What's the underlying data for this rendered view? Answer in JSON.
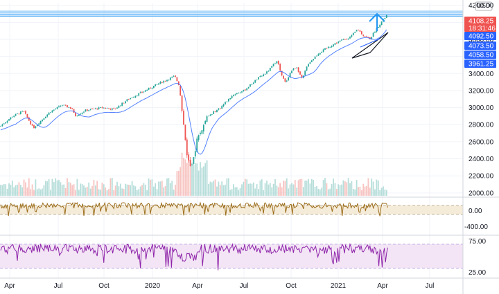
{
  "chart_data": [
    {
      "type": "candlestick",
      "currency": "USD",
      "ylim": [
        1950,
        4230
      ],
      "y_ticks": [
        2000,
        2200,
        2400,
        2600,
        2800,
        3000,
        3200,
        3400,
        3600,
        3800,
        4000,
        4200
      ],
      "y_tick_labels": [
        "2000.00",
        "2200.00",
        "2400.00",
        "2600.00",
        "2800.00",
        "3000.00",
        "3200.00",
        "3400.00",
        "3600.00",
        "3800.00",
        "4000.00",
        "4200.00"
      ],
      "x_ticks": [
        "Apr",
        "Jul",
        "Oct",
        "2020",
        "Apr",
        "Jul",
        "Oct",
        "2021",
        "Apr",
        "Jul"
      ],
      "price_tags": [
        {
          "label": "4108.25",
          "sub": "18:31:46",
          "color": "#ef5350"
        },
        {
          "label": "4092.50",
          "color": "#2962ff"
        },
        {
          "label": "4073.50",
          "color": "#2962ff"
        },
        {
          "label": "4058.50",
          "color": "#2962ff"
        },
        {
          "label": "3961.25",
          "color": "#2962ff"
        }
      ],
      "price_anchors": [
        [
          0,
          2780
        ],
        [
          18,
          2900
        ],
        [
          34,
          2960
        ],
        [
          48,
          2760
        ],
        [
          72,
          2950
        ],
        [
          90,
          3030
        ],
        [
          104,
          2990
        ],
        [
          108,
          2900
        ],
        [
          124,
          2970
        ],
        [
          148,
          3000
        ],
        [
          165,
          2980
        ],
        [
          185,
          3100
        ],
        [
          205,
          3180
        ],
        [
          228,
          3280
        ],
        [
          252,
          3370
        ],
        [
          258,
          3270
        ],
        [
          263,
          2950
        ],
        [
          270,
          2450
        ],
        [
          276,
          2250
        ],
        [
          284,
          2620
        ],
        [
          300,
          2900
        ],
        [
          318,
          3000
        ],
        [
          336,
          3150
        ],
        [
          352,
          3200
        ],
        [
          370,
          3330
        ],
        [
          386,
          3420
        ],
        [
          400,
          3560
        ],
        [
          406,
          3380
        ],
        [
          412,
          3290
        ],
        [
          420,
          3430
        ],
        [
          428,
          3480
        ],
        [
          436,
          3330
        ],
        [
          444,
          3510
        ],
        [
          460,
          3640
        ],
        [
          476,
          3720
        ],
        [
          490,
          3780
        ],
        [
          506,
          3830
        ],
        [
          516,
          3920
        ],
        [
          524,
          3850
        ],
        [
          534,
          3810
        ],
        [
          546,
          3960
        ],
        [
          556,
          4060
        ],
        [
          560,
          4105
        ]
      ],
      "moving_average": "20-period",
      "volume": "histogram",
      "oscillators": [
        {
          "ticks": [
            "0.00",
            "-400.00"
          ],
          "color": "#9c6e1c",
          "band_color": "#f5ebd9"
        },
        {
          "ticks": [
            "75.00",
            "25.00"
          ],
          "color": "#8e24aa",
          "band_color": "#f3e5f5"
        }
      ],
      "horizontal_lines": [
        4128,
        4115,
        4092.5,
        4073.5
      ],
      "annotations": [
        "up-arrow",
        "triangle-pattern"
      ]
    }
  ]
}
